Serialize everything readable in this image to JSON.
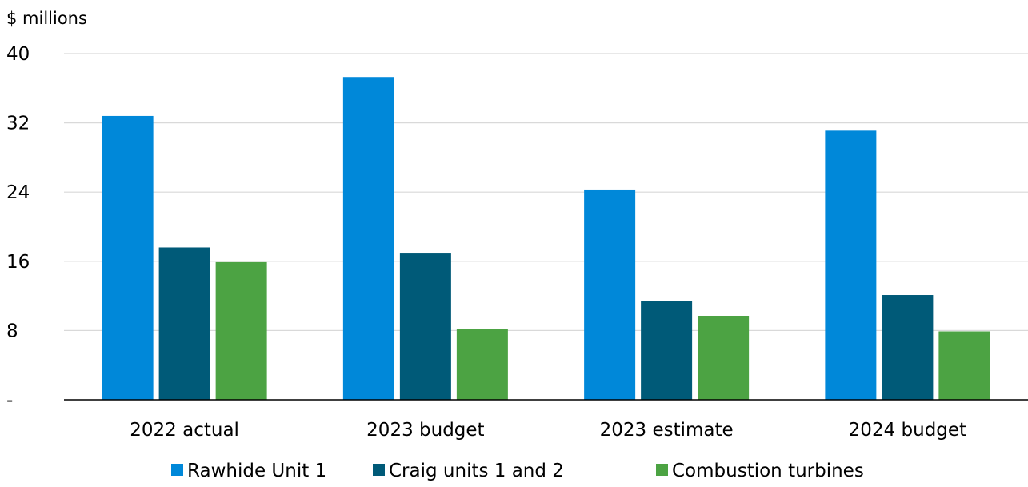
{
  "chart_data": {
    "type": "bar",
    "title": "",
    "unit_label": "$ millions",
    "xlabel": "",
    "ylabel": "",
    "categories": [
      "2022 actual",
      "2023 budget",
      "2023 estimate",
      "2024 budget"
    ],
    "series": [
      {
        "name": "Rawhide Unit 1",
        "color": "#0088d9",
        "values": [
          32.8,
          37.3,
          24.3,
          31.1
        ]
      },
      {
        "name": "Craig units 1 and 2",
        "color": "#005a78",
        "values": [
          17.6,
          16.9,
          11.4,
          12.1
        ]
      },
      {
        "name": "Combustion turbines",
        "color": "#4ca343",
        "values": [
          15.9,
          8.2,
          9.7,
          7.9
        ]
      }
    ],
    "ylim": [
      0,
      40
    ],
    "yticks": [
      0,
      8,
      16,
      24,
      32,
      40
    ],
    "ytick_labels": [
      "-",
      "8",
      "16",
      "24",
      "32",
      "40"
    ],
    "grid": true,
    "legend_position": "bottom"
  }
}
